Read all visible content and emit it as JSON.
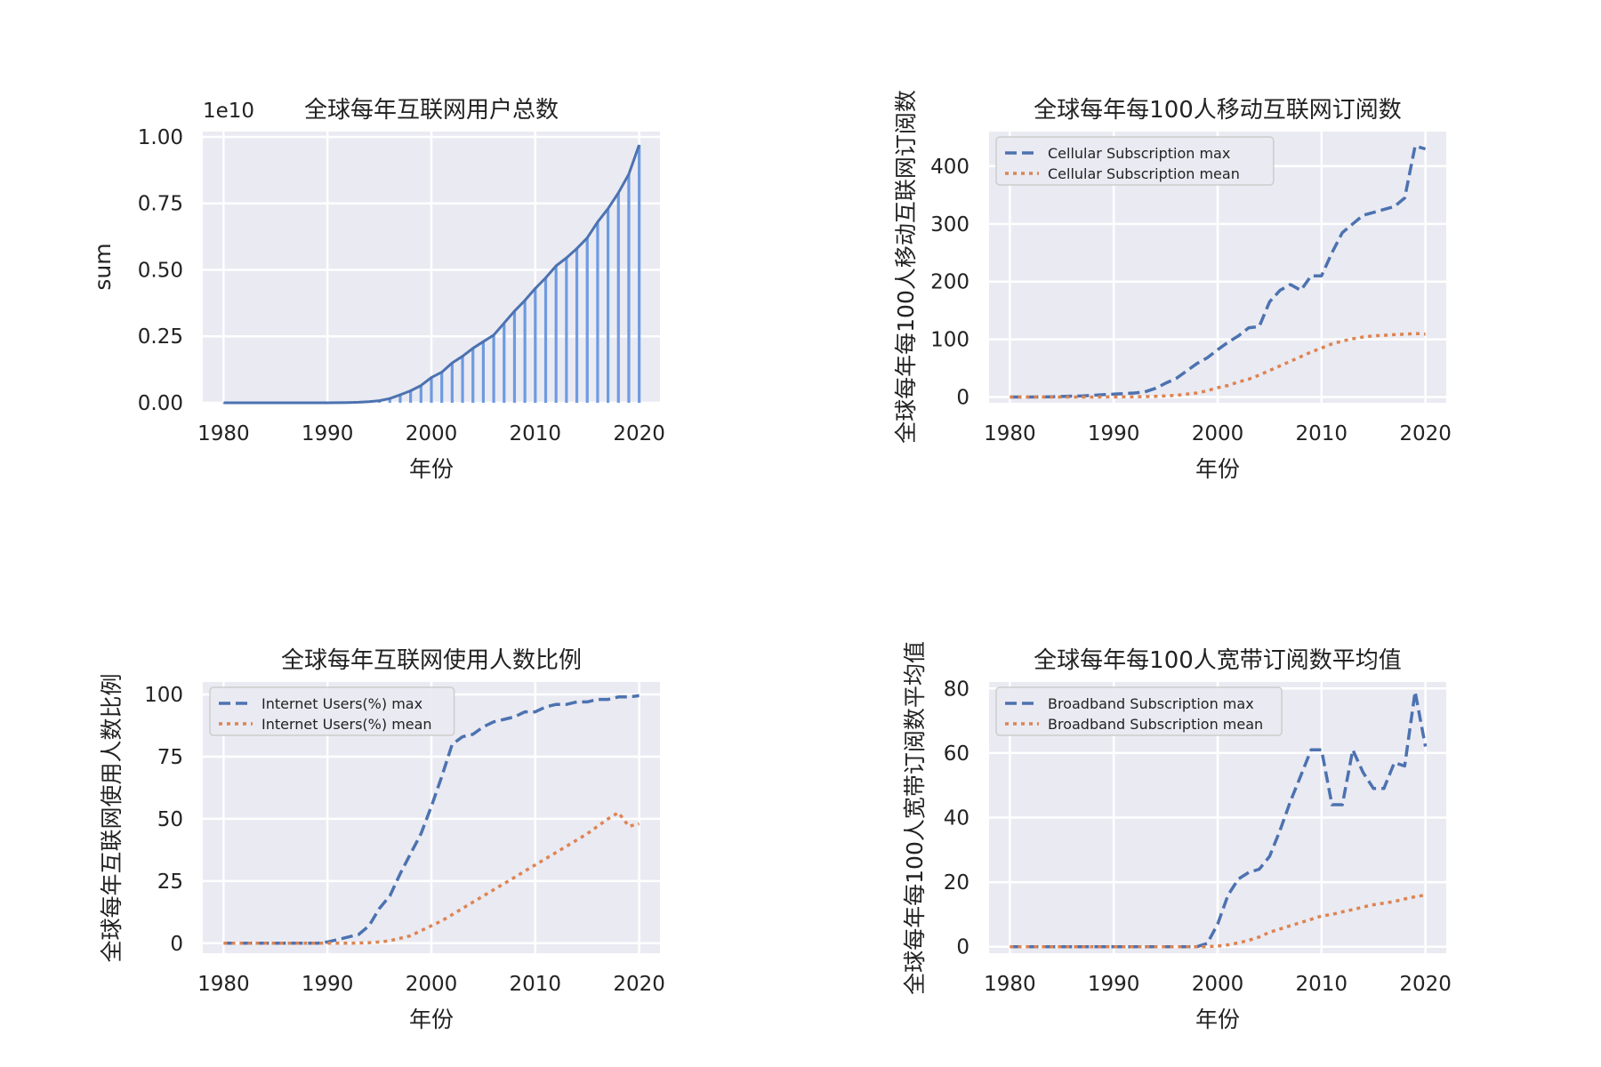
{
  "chart_data": [
    {
      "type": "bar",
      "title": "全球每年互联网用户总数",
      "xlabel": "年份",
      "ylabel": "sum",
      "y_offset_label": "1e10",
      "xlim": [
        1978,
        2022
      ],
      "ylim": [
        0,
        1.02
      ],
      "xticks": [
        "1980",
        "1990",
        "2000",
        "2010",
        "2020"
      ],
      "yticks": [
        "0.00",
        "0.25",
        "0.50",
        "0.75",
        "1.00"
      ],
      "grid": true,
      "bar_color": "#6d9be0",
      "line_color": "#4c72b0",
      "x": [
        1980,
        1981,
        1982,
        1983,
        1984,
        1985,
        1986,
        1987,
        1988,
        1989,
        1990,
        1991,
        1992,
        1993,
        1994,
        1995,
        1996,
        1997,
        1998,
        1999,
        2000,
        2001,
        2002,
        2003,
        2004,
        2005,
        2006,
        2007,
        2008,
        2009,
        2010,
        2011,
        2012,
        2013,
        2014,
        2015,
        2016,
        2017,
        2018,
        2019,
        2020
      ],
      "values": [
        0,
        0,
        0,
        0,
        0,
        0,
        0,
        0,
        0,
        0,
        0,
        0.0003,
        0.001,
        0.002,
        0.004,
        0.008,
        0.016,
        0.03,
        0.045,
        0.065,
        0.095,
        0.115,
        0.15,
        0.175,
        0.205,
        0.23,
        0.255,
        0.3,
        0.345,
        0.385,
        0.43,
        0.47,
        0.515,
        0.545,
        0.58,
        0.62,
        0.68,
        0.73,
        0.79,
        0.86,
        0.97
      ]
    },
    {
      "type": "line",
      "title": "全球每年每100人移动互联网订阅数",
      "xlabel": "年份",
      "ylabel": "全球每年每100人移动互联网订阅数",
      "xlim": [
        1978,
        2022
      ],
      "ylim": [
        -10,
        460
      ],
      "xticks": [
        "1980",
        "1990",
        "2000",
        "2010",
        "2020"
      ],
      "yticks": [
        "0",
        "100",
        "200",
        "300",
        "400"
      ],
      "grid": true,
      "legend_position": "upper-left",
      "x": [
        1980,
        1981,
        1982,
        1983,
        1984,
        1985,
        1986,
        1987,
        1988,
        1989,
        1990,
        1991,
        1992,
        1993,
        1994,
        1995,
        1996,
        1997,
        1998,
        1999,
        2000,
        2001,
        2002,
        2003,
        2004,
        2005,
        2006,
        2007,
        2008,
        2009,
        2010,
        2011,
        2012,
        2013,
        2014,
        2015,
        2016,
        2017,
        2018,
        2019,
        2020
      ],
      "series": [
        {
          "name": "Cellular Subscription max",
          "color": "#4c72b0",
          "style": "dashed",
          "values": [
            0,
            0,
            0,
            0.2,
            0.5,
            1,
            1.5,
            2,
            3,
            4,
            5,
            6,
            7,
            9,
            15,
            24,
            32,
            45,
            58,
            68,
            82,
            95,
            106,
            120,
            122,
            165,
            185,
            195,
            185,
            210,
            210,
            250,
            285,
            300,
            315,
            320,
            325,
            330,
            345,
            435,
            430
          ]
        },
        {
          "name": "Cellular Subscription mean",
          "color": "#dd8452",
          "style": "dotted",
          "values": [
            0,
            0,
            0,
            0,
            0,
            0,
            0,
            0,
            0,
            0.1,
            0.2,
            0.3,
            0.5,
            0.8,
            1.2,
            2,
            3,
            5,
            7,
            11,
            16,
            20,
            26,
            31,
            38,
            46,
            54,
            62,
            70,
            78,
            85,
            92,
            97,
            101,
            104,
            106,
            107,
            108,
            109,
            110,
            109
          ]
        }
      ]
    },
    {
      "type": "line",
      "title": "全球每年互联网使用人数比例",
      "xlabel": "年份",
      "ylabel": "全球每年互联网使用人数比例",
      "xlim": [
        1978,
        2022
      ],
      "ylim": [
        -4,
        105
      ],
      "xticks": [
        "1980",
        "1990",
        "2000",
        "2010",
        "2020"
      ],
      "yticks": [
        "0",
        "25",
        "50",
        "75",
        "100"
      ],
      "grid": true,
      "legend_position": "upper-left",
      "x": [
        1980,
        1981,
        1982,
        1983,
        1984,
        1985,
        1986,
        1987,
        1988,
        1989,
        1990,
        1991,
        1992,
        1993,
        1994,
        1995,
        1996,
        1997,
        1998,
        1999,
        2000,
        2001,
        2002,
        2003,
        2004,
        2005,
        2006,
        2007,
        2008,
        2009,
        2010,
        2011,
        2012,
        2013,
        2014,
        2015,
        2016,
        2017,
        2018,
        2019,
        2020
      ],
      "series": [
        {
          "name": "Internet Users(%) max",
          "color": "#4c72b0",
          "style": "dashed",
          "values": [
            0,
            0,
            0,
            0,
            0,
            0,
            0,
            0,
            0,
            0,
            0.5,
            1.5,
            2.5,
            3.5,
            7,
            14,
            19,
            28,
            36,
            44,
            55,
            67,
            80,
            83,
            84,
            87,
            89,
            90,
            91,
            93,
            93,
            95,
            96,
            96,
            97,
            97,
            98,
            98,
            99,
            99,
            99.5
          ]
        },
        {
          "name": "Internet Users(%) mean",
          "color": "#dd8452",
          "style": "dotted",
          "values": [
            0,
            0,
            0,
            0,
            0,
            0,
            0,
            0,
            0,
            0,
            0,
            0,
            0,
            0.1,
            0.2,
            0.5,
            1,
            2,
            3,
            5,
            7,
            9,
            11.5,
            14,
            16.5,
            19,
            21.5,
            24,
            26.5,
            29,
            31.5,
            34,
            36.5,
            39,
            41.5,
            44,
            47,
            50,
            52.5,
            47,
            48
          ]
        }
      ]
    },
    {
      "type": "line",
      "title": "全球每年每100人宽带订阅数平均值",
      "xlabel": "年份",
      "ylabel": "全球每年每100人宽带订阅数平均值",
      "xlim": [
        1978,
        2022
      ],
      "ylim": [
        -2,
        82
      ],
      "xticks": [
        "1980",
        "1990",
        "2000",
        "2010",
        "2020"
      ],
      "yticks": [
        "0",
        "20",
        "40",
        "60",
        "80"
      ],
      "grid": true,
      "legend_position": "upper-left",
      "x": [
        1980,
        1981,
        1982,
        1983,
        1984,
        1985,
        1986,
        1987,
        1988,
        1989,
        1990,
        1991,
        1992,
        1993,
        1994,
        1995,
        1996,
        1997,
        1998,
        1999,
        2000,
        2001,
        2002,
        2003,
        2004,
        2005,
        2006,
        2007,
        2008,
        2009,
        2010,
        2011,
        2012,
        2013,
        2014,
        2015,
        2016,
        2017,
        2018,
        2019,
        2020
      ],
      "series": [
        {
          "name": "Broadband Subscription max",
          "color": "#4c72b0",
          "style": "dashed",
          "values": [
            0,
            0,
            0,
            0,
            0,
            0,
            0,
            0,
            0,
            0,
            0,
            0,
            0,
            0,
            0,
            0,
            0,
            0,
            0,
            1,
            7,
            16,
            21,
            23,
            24,
            28,
            36,
            45,
            53,
            61,
            61,
            44,
            44,
            61,
            54,
            49,
            49,
            57,
            56,
            79,
            62
          ]
        },
        {
          "name": "Broadband Subscription mean",
          "color": "#dd8452",
          "style": "dotted",
          "values": [
            0,
            0,
            0,
            0,
            0,
            0,
            0,
            0,
            0,
            0,
            0,
            0,
            0,
            0,
            0,
            0,
            0,
            0,
            0,
            0,
            0.2,
            0.6,
            1.2,
            2,
            3,
            4.5,
            5.5,
            6.5,
            7.5,
            8.5,
            9.5,
            10,
            10.8,
            11.5,
            12.3,
            13,
            13.5,
            14,
            14.8,
            15.5,
            16
          ]
        }
      ]
    }
  ]
}
